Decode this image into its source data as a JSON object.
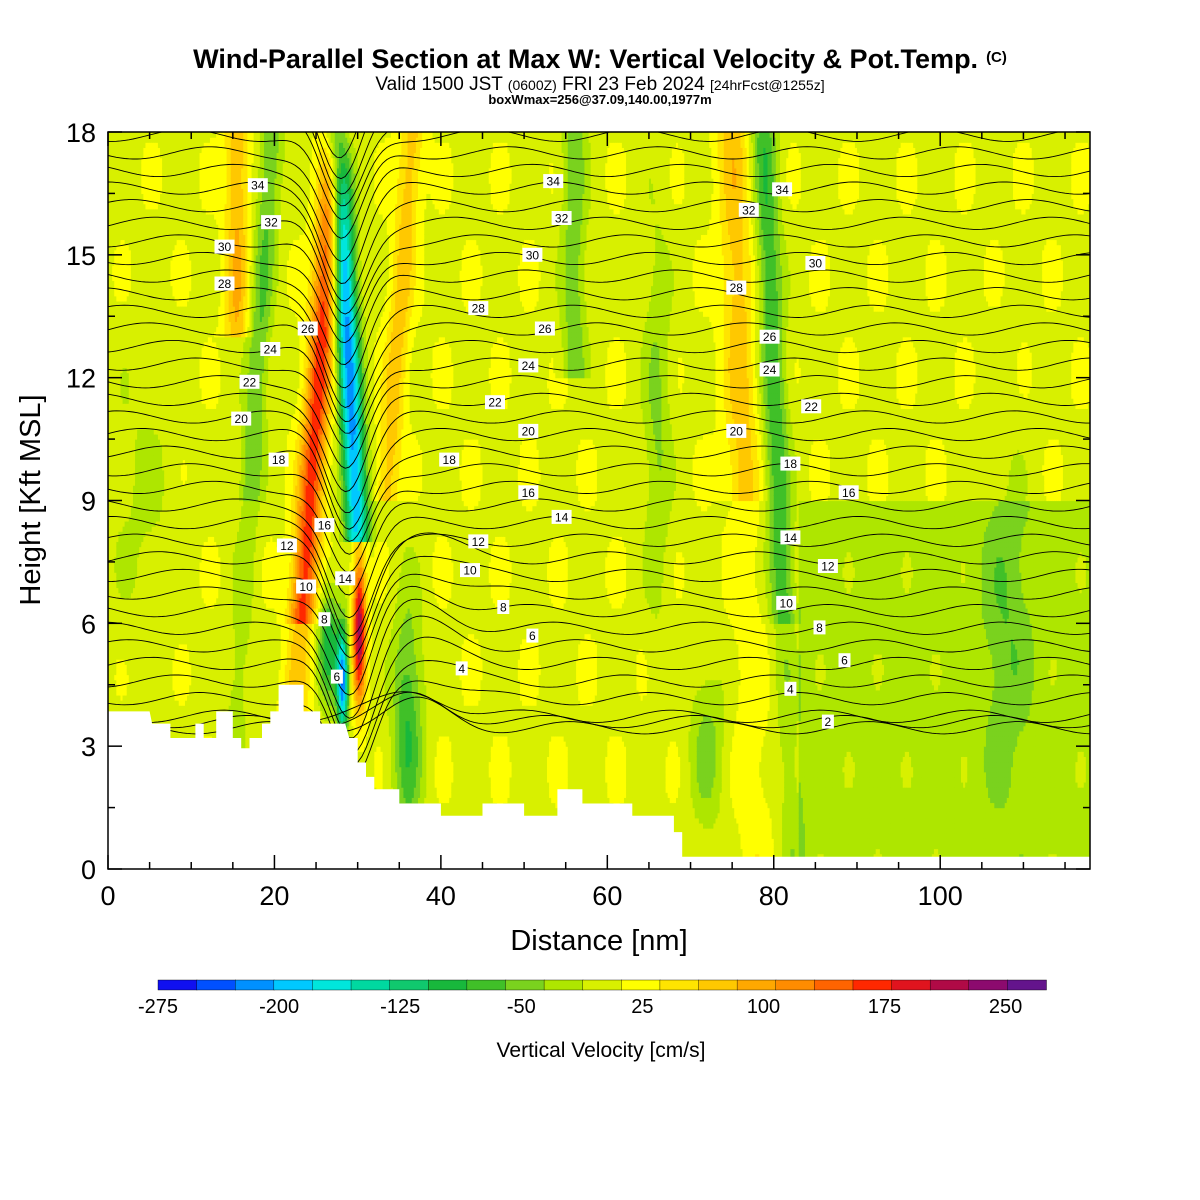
{
  "title": {
    "main": "Wind-Parallel Section at Max W: Vertical Velocity & Pot.Temp.",
    "copyright": "(C)",
    "valid_prefix": "Valid 1500 JST",
    "valid_utc": "(0600Z)",
    "valid_date": "FRI 23 Feb 2024",
    "forecast_info": "[24hrFcst@1255z]",
    "boxinfo": "boxWmax=256@37.09,140.00,1977m"
  },
  "chart_data": {
    "type": "heatmap",
    "xlabel": "Distance [nm]",
    "ylabel": "Height [Kft MSL]",
    "xlim": [
      0,
      118
    ],
    "ylim": [
      0,
      18
    ],
    "xticks": [
      "0",
      "20",
      "40",
      "60",
      "80",
      "100"
    ],
    "yticks": [
      "0",
      "3",
      "6",
      "9",
      "12",
      "15",
      "18"
    ],
    "colorbar": {
      "label": "Vertical Velocity [cm/s]",
      "ticks": [
        "-275",
        "-200",
        "-125",
        "-50",
        "25",
        "100",
        "175",
        "250"
      ],
      "levels": [
        -275,
        -250,
        -225,
        -200,
        -175,
        -150,
        -125,
        -100,
        -75,
        -50,
        -25,
        0,
        25,
        50,
        75,
        100,
        125,
        150,
        175,
        200,
        225,
        250,
        275
      ],
      "colors": [
        "#1010f0",
        "#0050ff",
        "#0090ff",
        "#00c8ff",
        "#00e6dc",
        "#00d8a0",
        "#10c86e",
        "#18b83c",
        "#40c028",
        "#7ad21e",
        "#aee600",
        "#d8f000",
        "#ffff00",
        "#ffe400",
        "#ffc800",
        "#ffa800",
        "#ff8c00",
        "#ff6400",
        "#ff2800",
        "#e0141e",
        "#b00a46",
        "#8c0a6e",
        "#64148c"
      ]
    },
    "terrain_kft": [
      [
        0,
        3.85
      ],
      [
        5,
        3.85
      ],
      [
        5.3,
        3.55
      ],
      [
        7.5,
        3.55
      ],
      [
        7.5,
        3.2
      ],
      [
        10.5,
        3.2
      ],
      [
        10.5,
        3.55
      ],
      [
        11.5,
        3.55
      ],
      [
        11.5,
        3.2
      ],
      [
        13,
        3.2
      ],
      [
        13,
        3.85
      ],
      [
        15,
        3.85
      ],
      [
        15,
        3.2
      ],
      [
        16,
        3.2
      ],
      [
        16,
        2.95
      ],
      [
        17,
        2.95
      ],
      [
        17,
        3.2
      ],
      [
        18.5,
        3.2
      ],
      [
        18.5,
        3.55
      ],
      [
        19.5,
        3.55
      ],
      [
        19.5,
        3.85
      ],
      [
        20.5,
        3.85
      ],
      [
        20.5,
        4.5
      ],
      [
        23.5,
        4.5
      ],
      [
        23.5,
        3.85
      ],
      [
        25.5,
        3.85
      ],
      [
        25.5,
        3.55
      ],
      [
        28.5,
        3.55
      ],
      [
        29,
        3.2
      ],
      [
        30,
        3.2
      ],
      [
        30,
        2.6
      ],
      [
        31,
        2.6
      ],
      [
        31,
        2.25
      ],
      [
        32,
        2.25
      ],
      [
        32,
        1.95
      ],
      [
        35,
        1.95
      ],
      [
        35,
        1.6
      ],
      [
        40,
        1.6
      ],
      [
        40,
        1.3
      ],
      [
        45,
        1.3
      ],
      [
        45,
        1.6
      ],
      [
        50,
        1.6
      ],
      [
        50,
        1.3
      ],
      [
        54,
        1.3
      ],
      [
        54,
        1.95
      ],
      [
        57,
        1.95
      ],
      [
        57,
        1.6
      ],
      [
        63,
        1.6
      ],
      [
        63,
        1.3
      ],
      [
        68,
        1.3
      ],
      [
        68,
        0.9
      ],
      [
        69,
        0.9
      ],
      [
        69,
        0.3
      ],
      [
        118,
        0.3
      ]
    ],
    "theta_contour_levels": [
      2,
      4,
      6,
      8,
      10,
      12,
      14,
      16,
      18,
      20,
      22,
      24,
      26,
      28,
      30,
      32,
      34
    ],
    "theta_contour_labels": [
      {
        "v": "34",
        "x": 18,
        "y": 16.7
      },
      {
        "v": "32",
        "x": 19.6,
        "y": 15.8
      },
      {
        "v": "30",
        "x": 14,
        "y": 15.2
      },
      {
        "v": "28",
        "x": 14,
        "y": 14.3
      },
      {
        "v": "26",
        "x": 24,
        "y": 13.2
      },
      {
        "v": "24",
        "x": 19.5,
        "y": 12.7
      },
      {
        "v": "22",
        "x": 17,
        "y": 11.9
      },
      {
        "v": "20",
        "x": 16,
        "y": 11.0
      },
      {
        "v": "18",
        "x": 20.5,
        "y": 10.0
      },
      {
        "v": "16",
        "x": 26,
        "y": 8.4
      },
      {
        "v": "12",
        "x": 21.5,
        "y": 7.9
      },
      {
        "v": "10",
        "x": 23.8,
        "y": 6.9
      },
      {
        "v": "8",
        "x": 26,
        "y": 6.1
      },
      {
        "v": "6",
        "x": 27.5,
        "y": 4.7
      },
      {
        "v": "14",
        "x": 28.5,
        "y": 7.1
      },
      {
        "v": "34",
        "x": 53.5,
        "y": 16.8
      },
      {
        "v": "32",
        "x": 54.5,
        "y": 15.9
      },
      {
        "v": "30",
        "x": 51,
        "y": 15.0
      },
      {
        "v": "28",
        "x": 44.5,
        "y": 13.7
      },
      {
        "v": "26",
        "x": 52.5,
        "y": 13.2
      },
      {
        "v": "24",
        "x": 50.5,
        "y": 12.3
      },
      {
        "v": "22",
        "x": 46.5,
        "y": 11.4
      },
      {
        "v": "20",
        "x": 50.5,
        "y": 10.7
      },
      {
        "v": "18",
        "x": 41,
        "y": 10.0
      },
      {
        "v": "16",
        "x": 50.5,
        "y": 9.2
      },
      {
        "v": "14",
        "x": 54.5,
        "y": 8.6
      },
      {
        "v": "12",
        "x": 44.5,
        "y": 8.0
      },
      {
        "v": "10",
        "x": 43.5,
        "y": 7.3
      },
      {
        "v": "8",
        "x": 47.5,
        "y": 6.4
      },
      {
        "v": "6",
        "x": 51,
        "y": 5.7
      },
      {
        "v": "4",
        "x": 42.5,
        "y": 4.9
      },
      {
        "v": "34",
        "x": 81,
        "y": 16.6
      },
      {
        "v": "32",
        "x": 77,
        "y": 16.1
      },
      {
        "v": "30",
        "x": 85,
        "y": 14.8
      },
      {
        "v": "28",
        "x": 75.5,
        "y": 14.2
      },
      {
        "v": "26",
        "x": 79.5,
        "y": 13.0
      },
      {
        "v": "24",
        "x": 79.5,
        "y": 12.2
      },
      {
        "v": "22",
        "x": 84.5,
        "y": 11.3
      },
      {
        "v": "20",
        "x": 75.5,
        "y": 10.7
      },
      {
        "v": "18",
        "x": 82,
        "y": 9.9
      },
      {
        "v": "16",
        "x": 89,
        "y": 9.2
      },
      {
        "v": "14",
        "x": 82,
        "y": 8.1
      },
      {
        "v": "12",
        "x": 86.5,
        "y": 7.4
      },
      {
        "v": "10",
        "x": 81.5,
        "y": 6.5
      },
      {
        "v": "8",
        "x": 85.5,
        "y": 5.9
      },
      {
        "v": "6",
        "x": 88.5,
        "y": 5.1
      },
      {
        "v": "4",
        "x": 82,
        "y": 4.4
      },
      {
        "v": "2",
        "x": 86.5,
        "y": 3.6
      }
    ]
  }
}
